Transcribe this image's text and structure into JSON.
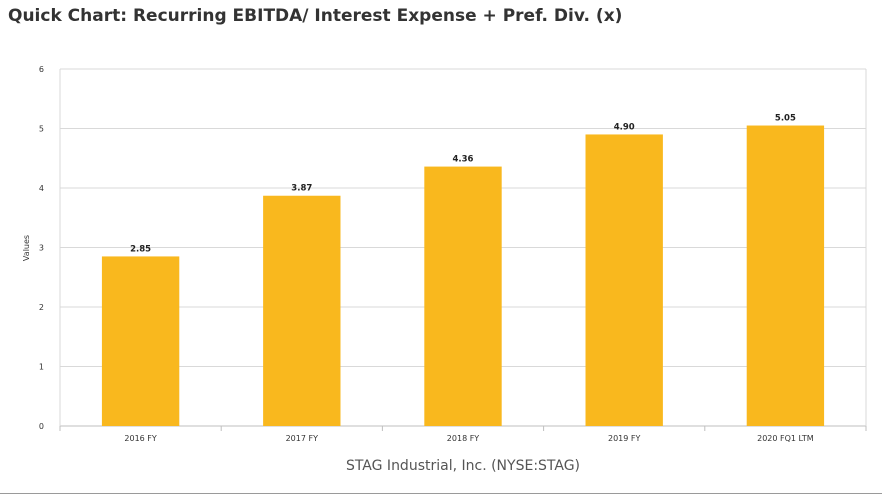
{
  "title": "Quick Chart: Recurring EBITDA/ Interest Expense + Pref. Div. (x)",
  "company": "STAG Industrial, Inc. (NYSE:STAG)",
  "colors": {
    "bar": "#F9B81E",
    "grid": "#d9d9d9",
    "axis": "#bfbfbf"
  },
  "chart_data": {
    "type": "bar",
    "title": "Quick Chart: Recurring EBITDA/ Interest Expense + Pref. Div. (x)",
    "xlabel": "STAG Industrial, Inc. (NYSE:STAG)",
    "ylabel": "Values",
    "categories": [
      "2016 FY",
      "2017 FY",
      "2018 FY",
      "2019 FY",
      "2020 FQ1 LTM"
    ],
    "values": [
      2.85,
      3.87,
      4.36,
      4.9,
      5.05
    ],
    "value_labels": [
      "2.85",
      "3.87",
      "4.36",
      "4.90",
      "5.05"
    ],
    "ylim": [
      0,
      6
    ],
    "yticks": [
      0,
      1,
      2,
      3,
      4,
      5,
      6
    ],
    "grid": true,
    "legend": "none"
  }
}
